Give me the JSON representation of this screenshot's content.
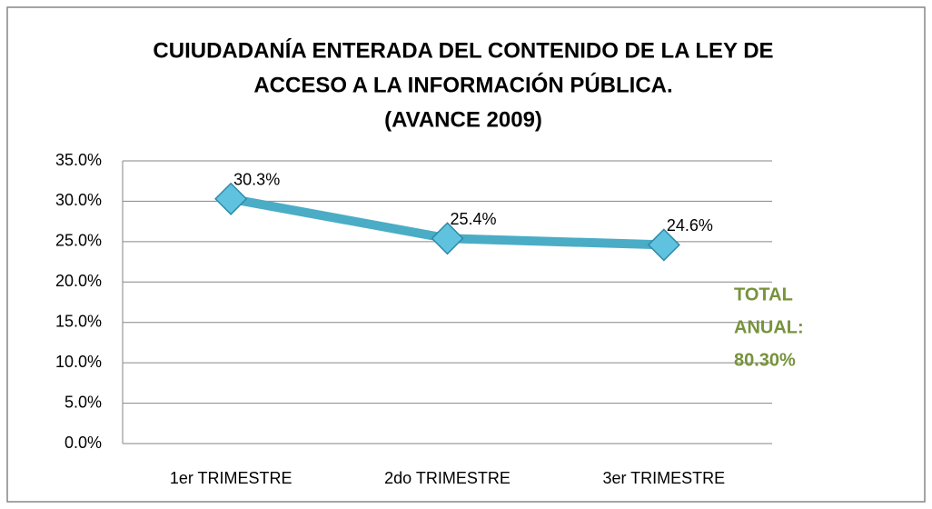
{
  "chart_data": {
    "type": "line",
    "title": [
      "CUIUDADANÍA ENTERADA DEL CONTENIDO DE LA LEY DE",
      "ACCESO A LA INFORMACIÓN PÚBLICA.",
      "(AVANCE 2009)"
    ],
    "categories": [
      "1er TRIMESTRE",
      "2do TRIMESTRE",
      "3er TRIMESTRE"
    ],
    "series": [
      {
        "color": "#4bacc6",
        "values": [
          30.3,
          25.4,
          24.6
        ],
        "value_labels": [
          "30.3%",
          "25.4%",
          "24.6%"
        ]
      }
    ],
    "ylim": [
      0,
      35
    ],
    "yticks": [
      {
        "value": 0,
        "label": "0.0%"
      },
      {
        "value": 5,
        "label": "5.0%"
      },
      {
        "value": 10,
        "label": "10.0%"
      },
      {
        "value": 15,
        "label": "15.0%"
      },
      {
        "value": 20,
        "label": "20.0%"
      },
      {
        "value": 25,
        "label": "25.0%"
      },
      {
        "value": 30,
        "label": "30.0%"
      },
      {
        "value": 35,
        "label": "35.0%"
      }
    ],
    "grid": true,
    "annotation": [
      "TOTAL",
      "ANUAL:",
      "80.30%"
    ]
  }
}
